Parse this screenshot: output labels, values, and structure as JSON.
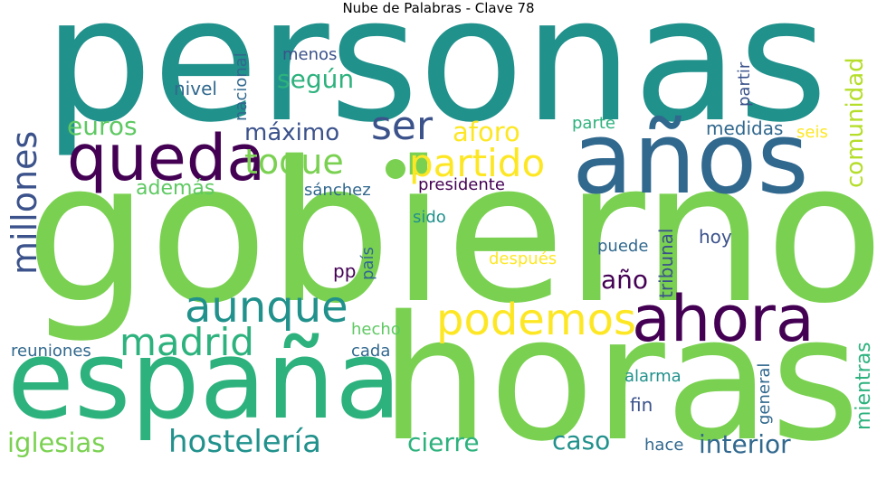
{
  "title": "Nube de Palabras - Clave 78",
  "words": {
    "personas": "personas",
    "gobierno": "gobierno",
    "horas": "horas",
    "espana": "españa",
    "anos": "años",
    "queda": "queda",
    "ahora": "ahora",
    "podemos": "podemos",
    "aunque": "aunque",
    "madrid": "madrid",
    "partido": "partido",
    "toque": "toque",
    "ser": "ser",
    "hosteleria": "hostelería",
    "millones": "millones",
    "iglesias": "iglesias",
    "interior": "interior",
    "cierre": "cierre",
    "caso": "caso",
    "aforo": "aforo",
    "maximo": "máximo",
    "euros": "euros",
    "segun": "según",
    "comunidad": "comunidad",
    "mientras": "mientras",
    "ademas": "además",
    "ano": "año",
    "menos": "menos",
    "nivel": "nivel",
    "nacional": "nacional",
    "partir": "partir",
    "medidas": "medidas",
    "seis": "seis",
    "parte": "parte",
    "sanchez": "sánchez",
    "presidente": "presidente",
    "sido": "sido",
    "hoy": "hoy",
    "puede": "puede",
    "tribunal": "tribunal",
    "pais": "país",
    "despues": "después",
    "pp": "pp",
    "hecho": "hecho",
    "reuniones": "reuniones",
    "cada": "cada",
    "alarma": "alarma",
    "general": "general",
    "fin": "fin",
    "hace": "hace"
  },
  "colors": {
    "teal": "#21918c",
    "green": "#7ad151",
    "yellow": "#fde725",
    "purple": "#440154",
    "blue": "#3b528b",
    "seagreen": "#2a9d68",
    "lightgreen": "#5ec962",
    "darkslate": "#31688e"
  }
}
